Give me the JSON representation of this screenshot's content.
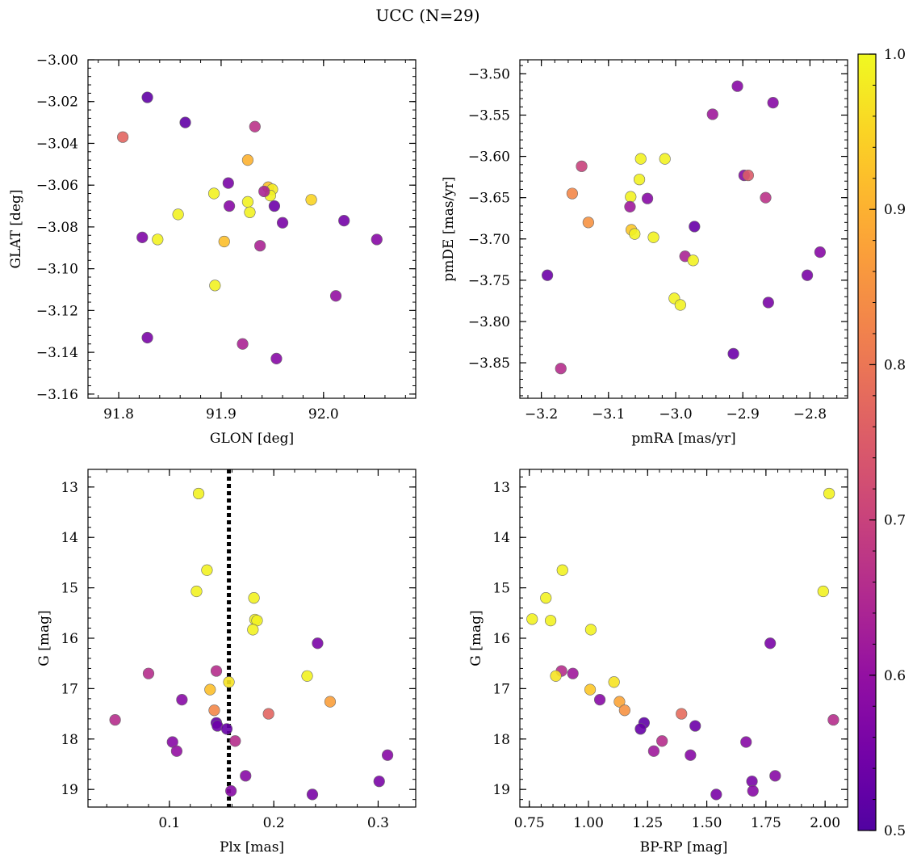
{
  "figure": {
    "title": "UCC (N=29)"
  },
  "colorbar": {
    "min": 0.5,
    "max": 1.0,
    "ticks": [
      0.5,
      0.6,
      0.7,
      0.8,
      0.9,
      1.0
    ],
    "tick_labels": [
      "0.5",
      "0.6",
      "0.7",
      "0.8",
      "0.9",
      "1.0"
    ],
    "colormap": "plasma"
  },
  "chart_data": [
    {
      "type": "scatter",
      "id": "glon-glat",
      "xlabel": "GLON [deg]",
      "ylabel": "GLAT [deg]",
      "xlim": [
        91.77,
        92.09
      ],
      "ylim": [
        -3.162,
        -3.0
      ],
      "y_inverted": false,
      "xticks": [
        91.8,
        91.9,
        92.0
      ],
      "xtick_labels": [
        "91.8",
        "91.9",
        "92.0"
      ],
      "yticks": [
        -3.16,
        -3.14,
        -3.12,
        -3.1,
        -3.08,
        -3.06,
        -3.04,
        -3.02,
        -3.0
      ],
      "ytick_labels": [
        "−3.16",
        "−3.14",
        "−3.12",
        "−3.10",
        "−3.08",
        "−3.06",
        "−3.04",
        "−3.02",
        "−3.00"
      ],
      "points": [
        {
          "x": 91.828,
          "y": -3.018,
          "c": 0.52
        },
        {
          "x": 91.865,
          "y": -3.03,
          "c": 0.52
        },
        {
          "x": 91.804,
          "y": -3.037,
          "c": 0.77
        },
        {
          "x": 91.933,
          "y": -3.032,
          "c": 0.67
        },
        {
          "x": 91.926,
          "y": -3.048,
          "c": 0.9
        },
        {
          "x": 91.907,
          "y": -3.059,
          "c": 0.56
        },
        {
          "x": 91.893,
          "y": -3.064,
          "c": 0.99
        },
        {
          "x": 91.908,
          "y": -3.07,
          "c": 0.58
        },
        {
          "x": 91.926,
          "y": -3.068,
          "c": 0.99
        },
        {
          "x": 91.928,
          "y": -3.073,
          "c": 0.99
        },
        {
          "x": 91.946,
          "y": -3.061,
          "c": 0.92
        },
        {
          "x": 91.95,
          "y": -3.062,
          "c": 0.98
        },
        {
          "x": 91.948,
          "y": -3.065,
          "c": 0.99
        },
        {
          "x": 91.942,
          "y": -3.063,
          "c": 0.64
        },
        {
          "x": 91.952,
          "y": -3.07,
          "c": 0.54
        },
        {
          "x": 91.988,
          "y": -3.067,
          "c": 0.95
        },
        {
          "x": 91.858,
          "y": -3.074,
          "c": 0.99
        },
        {
          "x": 91.96,
          "y": -3.078,
          "c": 0.56
        },
        {
          "x": 92.02,
          "y": -3.077,
          "c": 0.55
        },
        {
          "x": 91.823,
          "y": -3.085,
          "c": 0.57
        },
        {
          "x": 91.838,
          "y": -3.086,
          "c": 0.99
        },
        {
          "x": 91.903,
          "y": -3.087,
          "c": 0.92
        },
        {
          "x": 91.938,
          "y": -3.089,
          "c": 0.64
        },
        {
          "x": 92.052,
          "y": -3.086,
          "c": 0.58
        },
        {
          "x": 91.894,
          "y": -3.108,
          "c": 0.99
        },
        {
          "x": 92.012,
          "y": -3.113,
          "c": 0.6
        },
        {
          "x": 91.828,
          "y": -3.133,
          "c": 0.56
        },
        {
          "x": 91.921,
          "y": -3.136,
          "c": 0.64
        },
        {
          "x": 91.954,
          "y": -3.143,
          "c": 0.58
        }
      ]
    },
    {
      "type": "scatter",
      "id": "pmra-pmde",
      "xlabel": "pmRA [mas/yr]",
      "ylabel": "pmDE [mas/yr]",
      "xlim": [
        -3.232,
        -2.744
      ],
      "ylim": [
        -3.893,
        -3.483
      ],
      "y_inverted": false,
      "xticks": [
        -3.2,
        -3.1,
        -3.0,
        -2.9,
        -2.8
      ],
      "xtick_labels": [
        "−3.2",
        "−3.1",
        "−3.0",
        "−2.9",
        "−2.8"
      ],
      "yticks": [
        -3.85,
        -3.8,
        -3.75,
        -3.7,
        -3.65,
        -3.6,
        -3.55,
        -3.5
      ],
      "ytick_labels": [
        "−3.85",
        "−3.80",
        "−3.75",
        "−3.70",
        "−3.65",
        "−3.60",
        "−3.55",
        "−3.50"
      ],
      "points": [
        {
          "x": -2.908,
          "y": -3.515,
          "c": 0.58
        },
        {
          "x": -2.855,
          "y": -3.535,
          "c": 0.58
        },
        {
          "x": -2.945,
          "y": -3.549,
          "c": 0.62
        },
        {
          "x": -3.052,
          "y": -3.603,
          "c": 0.99
        },
        {
          "x": -3.016,
          "y": -3.603,
          "c": 0.99
        },
        {
          "x": -3.14,
          "y": -3.612,
          "c": 0.7
        },
        {
          "x": -3.054,
          "y": -3.628,
          "c": 0.99
        },
        {
          "x": -2.898,
          "y": -3.623,
          "c": 0.58
        },
        {
          "x": -2.892,
          "y": -3.623,
          "c": 0.75
        },
        {
          "x": -3.154,
          "y": -3.645,
          "c": 0.83
        },
        {
          "x": -3.067,
          "y": -3.649,
          "c": 0.99
        },
        {
          "x": -3.042,
          "y": -3.651,
          "c": 0.58
        },
        {
          "x": -2.866,
          "y": -3.65,
          "c": 0.67
        },
        {
          "x": -3.068,
          "y": -3.661,
          "c": 0.62
        },
        {
          "x": -3.13,
          "y": -3.68,
          "c": 0.85
        },
        {
          "x": -2.972,
          "y": -3.685,
          "c": 0.53
        },
        {
          "x": -3.066,
          "y": -3.689,
          "c": 0.93
        },
        {
          "x": -3.061,
          "y": -3.694,
          "c": 0.99
        },
        {
          "x": -3.033,
          "y": -3.698,
          "c": 0.99
        },
        {
          "x": -2.785,
          "y": -3.716,
          "c": 0.58
        },
        {
          "x": -2.986,
          "y": -3.721,
          "c": 0.64
        },
        {
          "x": -2.974,
          "y": -3.726,
          "c": 0.99
        },
        {
          "x": -3.191,
          "y": -3.744,
          "c": 0.54
        },
        {
          "x": -2.804,
          "y": -3.744,
          "c": 0.56
        },
        {
          "x": -3.002,
          "y": -3.772,
          "c": 0.99
        },
        {
          "x": -2.993,
          "y": -3.78,
          "c": 0.99
        },
        {
          "x": -2.862,
          "y": -3.777,
          "c": 0.56
        },
        {
          "x": -2.914,
          "y": -3.839,
          "c": 0.54
        },
        {
          "x": -3.171,
          "y": -3.857,
          "c": 0.66
        }
      ]
    },
    {
      "type": "scatter",
      "id": "plx-g",
      "xlabel": "Plx [mas]",
      "ylabel": "G [mag]",
      "xlim": [
        0.022,
        0.336
      ],
      "ylim": [
        12.65,
        19.35
      ],
      "y_inverted": true,
      "xticks": [
        0.1,
        0.2,
        0.3
      ],
      "xtick_labels": [
        "0.1",
        "0.2",
        "0.3"
      ],
      "yticks": [
        13,
        14,
        15,
        16,
        17,
        18,
        19
      ],
      "ytick_labels": [
        "13",
        "14",
        "15",
        "16",
        "17",
        "18",
        "19"
      ],
      "vline": {
        "x": 0.157,
        "style": "dotted"
      },
      "points": [
        {
          "x": 0.128,
          "y": 13.13,
          "c": 0.99
        },
        {
          "x": 0.136,
          "y": 14.65,
          "c": 0.99
        },
        {
          "x": 0.126,
          "y": 15.07,
          "c": 0.99
        },
        {
          "x": 0.181,
          "y": 15.2,
          "c": 0.99
        },
        {
          "x": 0.182,
          "y": 15.63,
          "c": 0.99
        },
        {
          "x": 0.184,
          "y": 15.65,
          "c": 0.99
        },
        {
          "x": 0.18,
          "y": 15.83,
          "c": 0.99
        },
        {
          "x": 0.242,
          "y": 16.1,
          "c": 0.56
        },
        {
          "x": 0.145,
          "y": 16.65,
          "c": 0.66
        },
        {
          "x": 0.08,
          "y": 16.7,
          "c": 0.66
        },
        {
          "x": 0.232,
          "y": 16.75,
          "c": 0.99
        },
        {
          "x": 0.157,
          "y": 16.87,
          "c": 0.97
        },
        {
          "x": 0.139,
          "y": 17.02,
          "c": 0.92
        },
        {
          "x": 0.112,
          "y": 17.22,
          "c": 0.58
        },
        {
          "x": 0.254,
          "y": 17.26,
          "c": 0.87
        },
        {
          "x": 0.143,
          "y": 17.43,
          "c": 0.83
        },
        {
          "x": 0.195,
          "y": 17.5,
          "c": 0.77
        },
        {
          "x": 0.048,
          "y": 17.62,
          "c": 0.66
        },
        {
          "x": 0.145,
          "y": 17.68,
          "c": 0.52
        },
        {
          "x": 0.146,
          "y": 17.74,
          "c": 0.54
        },
        {
          "x": 0.155,
          "y": 17.8,
          "c": 0.53
        },
        {
          "x": 0.103,
          "y": 18.06,
          "c": 0.58
        },
        {
          "x": 0.163,
          "y": 18.04,
          "c": 0.66
        },
        {
          "x": 0.107,
          "y": 18.24,
          "c": 0.6
        },
        {
          "x": 0.309,
          "y": 18.32,
          "c": 0.58
        },
        {
          "x": 0.173,
          "y": 18.73,
          "c": 0.58
        },
        {
          "x": 0.301,
          "y": 18.84,
          "c": 0.56
        },
        {
          "x": 0.159,
          "y": 19.03,
          "c": 0.58
        },
        {
          "x": 0.237,
          "y": 19.1,
          "c": 0.56
        }
      ]
    },
    {
      "type": "scatter",
      "id": "bprp-g",
      "xlabel": "BP-RP [mag]",
      "ylabel": "G [mag]",
      "xlim": [
        0.71,
        2.095
      ],
      "ylim": [
        12.65,
        19.35
      ],
      "y_inverted": true,
      "xticks": [
        0.75,
        1.0,
        1.25,
        1.5,
        1.75,
        2.0
      ],
      "xtick_labels": [
        "0.75",
        "1.00",
        "1.25",
        "1.50",
        "1.75",
        "2.00"
      ],
      "yticks": [
        13,
        14,
        15,
        16,
        17,
        18,
        19
      ],
      "ytick_labels": [
        "13",
        "14",
        "15",
        "16",
        "17",
        "18",
        "19"
      ],
      "points": [
        {
          "x": 2.017,
          "y": 13.13,
          "c": 0.99
        },
        {
          "x": 0.89,
          "y": 14.65,
          "c": 0.99
        },
        {
          "x": 1.992,
          "y": 15.07,
          "c": 0.99
        },
        {
          "x": 0.82,
          "y": 15.2,
          "c": 0.99
        },
        {
          "x": 0.762,
          "y": 15.62,
          "c": 0.99
        },
        {
          "x": 0.84,
          "y": 15.65,
          "c": 0.99
        },
        {
          "x": 1.01,
          "y": 15.83,
          "c": 0.99
        },
        {
          "x": 1.768,
          "y": 16.1,
          "c": 0.56
        },
        {
          "x": 0.886,
          "y": 16.65,
          "c": 0.66
        },
        {
          "x": 0.934,
          "y": 16.7,
          "c": 0.62
        },
        {
          "x": 0.862,
          "y": 16.75,
          "c": 0.97
        },
        {
          "x": 1.108,
          "y": 16.87,
          "c": 0.97
        },
        {
          "x": 1.007,
          "y": 17.02,
          "c": 0.93
        },
        {
          "x": 1.048,
          "y": 17.22,
          "c": 0.58
        },
        {
          "x": 1.131,
          "y": 17.26,
          "c": 0.88
        },
        {
          "x": 1.153,
          "y": 17.43,
          "c": 0.85
        },
        {
          "x": 1.393,
          "y": 17.5,
          "c": 0.78
        },
        {
          "x": 2.035,
          "y": 17.62,
          "c": 0.66
        },
        {
          "x": 1.235,
          "y": 17.68,
          "c": 0.52
        },
        {
          "x": 1.451,
          "y": 17.74,
          "c": 0.54
        },
        {
          "x": 1.22,
          "y": 17.8,
          "c": 0.53
        },
        {
          "x": 1.666,
          "y": 18.06,
          "c": 0.58
        },
        {
          "x": 1.311,
          "y": 18.04,
          "c": 0.66
        },
        {
          "x": 1.276,
          "y": 18.24,
          "c": 0.62
        },
        {
          "x": 1.431,
          "y": 18.32,
          "c": 0.58
        },
        {
          "x": 1.789,
          "y": 18.73,
          "c": 0.58
        },
        {
          "x": 1.691,
          "y": 18.84,
          "c": 0.56
        },
        {
          "x": 1.695,
          "y": 19.03,
          "c": 0.58
        },
        {
          "x": 1.54,
          "y": 19.1,
          "c": 0.56
        }
      ]
    }
  ]
}
